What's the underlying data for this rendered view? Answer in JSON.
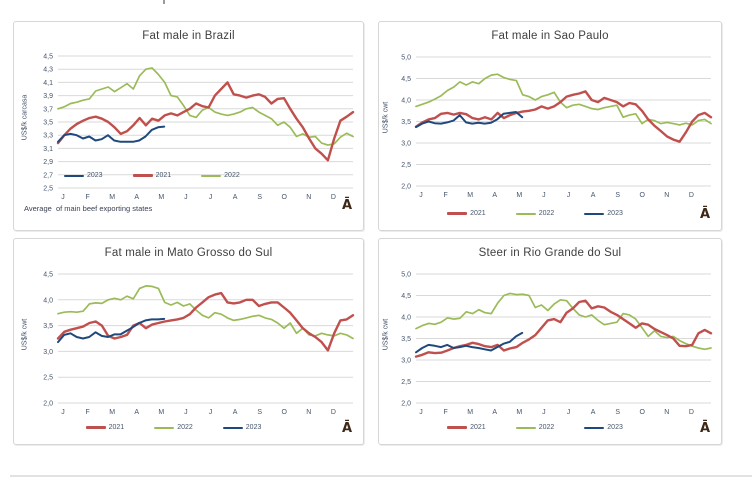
{
  "palette": {
    "red": "#C0504D",
    "green": "#9BBB59",
    "blue": "#1F497D",
    "grid": "#D9D9D9",
    "tick_text": "#44546A",
    "title_text": "#404040",
    "box_border": "#D6D6D6",
    "glyph_color": "#3D2817"
  },
  "chart_data": [
    {
      "type": "line",
      "title": "Fat male in Brazil",
      "ylabel": "US$/k carcasa",
      "xlabel": "",
      "ylim": [
        2.5,
        4.5
      ],
      "y_ticks": [
        "4,5",
        "4,3",
        "4,1",
        "3,9",
        "3,7",
        "3,5",
        "3,3",
        "3,1",
        "2,9",
        "2,7",
        "2,5"
      ],
      "x_labels": [
        "J",
        "F",
        "M",
        "A",
        "M",
        "J",
        "J",
        "A",
        "S",
        "O",
        "N",
        "D"
      ],
      "grid": true,
      "legend_position": "inside-bottom-left",
      "legend_order": [
        "2023",
        "2021",
        "2022"
      ],
      "footnote": "Average  of main beef exporting states",
      "corner_glyph": "Ā",
      "series": [
        {
          "name": "2021",
          "color_key": "red",
          "span": [
            0,
            1
          ],
          "values": [
            3.18,
            3.3,
            3.4,
            3.47,
            3.52,
            3.56,
            3.58,
            3.55,
            3.5,
            3.42,
            3.32,
            3.36,
            3.45,
            3.56,
            3.45,
            3.55,
            3.52,
            3.6,
            3.63,
            3.6,
            3.65,
            3.7,
            3.78,
            3.74,
            3.72,
            3.9,
            4.0,
            4.1,
            3.92,
            3.9,
            3.87,
            3.9,
            3.92,
            3.88,
            3.78,
            3.85,
            3.86,
            3.7,
            3.55,
            3.42,
            3.25,
            3.1,
            3.02,
            2.92,
            3.25,
            3.52,
            3.58,
            3.65
          ]
        },
        {
          "name": "2022",
          "color_key": "green",
          "span": [
            0,
            1
          ],
          "values": [
            3.7,
            3.73,
            3.78,
            3.8,
            3.83,
            3.85,
            3.97,
            4.0,
            4.03,
            3.96,
            4.02,
            4.08,
            4.0,
            4.2,
            4.3,
            4.32,
            4.22,
            4.1,
            3.9,
            3.88,
            3.75,
            3.6,
            3.57,
            3.68,
            3.72,
            3.65,
            3.62,
            3.6,
            3.62,
            3.65,
            3.7,
            3.72,
            3.65,
            3.6,
            3.55,
            3.45,
            3.5,
            3.42,
            3.28,
            3.32,
            3.27,
            3.28,
            3.18,
            3.15,
            3.17,
            3.27,
            3.33,
            3.28
          ]
        },
        {
          "name": "2023",
          "color_key": "blue",
          "span": [
            0,
            0.36
          ],
          "values": [
            3.2,
            3.3,
            3.32,
            3.3,
            3.25,
            3.28,
            3.22,
            3.24,
            3.3,
            3.22,
            3.2,
            3.2,
            3.2,
            3.22,
            3.28,
            3.38,
            3.42,
            3.43
          ]
        }
      ]
    },
    {
      "type": "line",
      "title": "Fat male in Sao Paulo",
      "ylabel": "US$/k cwt",
      "xlabel": "",
      "ylim": [
        2.0,
        5.0
      ],
      "y_ticks": [
        "5,0",
        "4,5",
        "4,0",
        "3,5",
        "3,0",
        "2,5",
        "2,0"
      ],
      "x_labels": [
        "J",
        "F",
        "M",
        "A",
        "M",
        "J",
        "J",
        "A",
        "S",
        "O",
        "N",
        "D"
      ],
      "grid": true,
      "legend_position": "bottom",
      "legend_order": [
        "2021",
        "2022",
        "2023"
      ],
      "corner_glyph": "Ā",
      "series": [
        {
          "name": "2021",
          "color_key": "red",
          "span": [
            0,
            1
          ],
          "values": [
            3.38,
            3.48,
            3.55,
            3.58,
            3.68,
            3.7,
            3.66,
            3.7,
            3.67,
            3.58,
            3.55,
            3.6,
            3.55,
            3.7,
            3.58,
            3.65,
            3.7,
            3.73,
            3.75,
            3.78,
            3.85,
            3.8,
            3.85,
            3.95,
            4.08,
            4.12,
            4.15,
            4.2,
            4.0,
            3.95,
            4.05,
            4.0,
            3.95,
            3.85,
            3.93,
            3.9,
            3.75,
            3.55,
            3.4,
            3.28,
            3.15,
            3.08,
            3.03,
            3.25,
            3.5,
            3.65,
            3.7,
            3.6
          ]
        },
        {
          "name": "2022",
          "color_key": "green",
          "span": [
            0,
            1
          ],
          "values": [
            3.85,
            3.9,
            3.95,
            4.02,
            4.1,
            4.22,
            4.3,
            4.42,
            4.35,
            4.42,
            4.38,
            4.5,
            4.58,
            4.6,
            4.52,
            4.48,
            4.45,
            4.12,
            4.08,
            4.0,
            4.08,
            4.12,
            4.18,
            3.95,
            3.82,
            3.88,
            3.9,
            3.85,
            3.8,
            3.78,
            3.82,
            3.85,
            3.88,
            3.6,
            3.65,
            3.68,
            3.45,
            3.55,
            3.52,
            3.45,
            3.48,
            3.45,
            3.42,
            3.46,
            3.42,
            3.52,
            3.55,
            3.45
          ]
        },
        {
          "name": "2023",
          "color_key": "blue",
          "span": [
            0,
            0.36
          ],
          "values": [
            3.37,
            3.45,
            3.5,
            3.46,
            3.45,
            3.48,
            3.52,
            3.65,
            3.48,
            3.45,
            3.47,
            3.45,
            3.47,
            3.55,
            3.68,
            3.7,
            3.72,
            3.6
          ]
        }
      ]
    },
    {
      "type": "line",
      "title": "Fat male in Mato Grosso do Sul",
      "ylabel": "US$/k cwt",
      "xlabel": "",
      "ylim": [
        2.0,
        4.5
      ],
      "y_ticks": [
        "4,5",
        "4,0",
        "3,5",
        "3,0",
        "2,5",
        "2,0"
      ],
      "x_labels": [
        "J",
        "F",
        "M",
        "A",
        "M",
        "J",
        "J",
        "A",
        "S",
        "O",
        "N",
        "D"
      ],
      "grid": true,
      "legend_position": "bottom",
      "legend_order": [
        "2021",
        "2022",
        "2023"
      ],
      "corner_glyph": "Ā",
      "series": [
        {
          "name": "2021",
          "color_key": "red",
          "span": [
            0,
            1
          ],
          "values": [
            3.25,
            3.38,
            3.42,
            3.45,
            3.48,
            3.55,
            3.58,
            3.5,
            3.3,
            3.25,
            3.28,
            3.32,
            3.5,
            3.55,
            3.45,
            3.52,
            3.55,
            3.58,
            3.6,
            3.62,
            3.65,
            3.72,
            3.85,
            3.95,
            4.05,
            4.1,
            4.13,
            3.95,
            3.93,
            3.95,
            4.0,
            4.0,
            3.88,
            3.92,
            3.95,
            3.95,
            3.85,
            3.75,
            3.6,
            3.45,
            3.35,
            3.28,
            3.18,
            3.02,
            3.35,
            3.6,
            3.62,
            3.7
          ]
        },
        {
          "name": "2022",
          "color_key": "green",
          "span": [
            0,
            1
          ],
          "values": [
            3.73,
            3.76,
            3.77,
            3.76,
            3.78,
            3.92,
            3.94,
            3.93,
            4.0,
            4.03,
            4.0,
            4.07,
            4.02,
            4.22,
            4.27,
            4.26,
            4.22,
            3.95,
            3.9,
            3.95,
            3.88,
            3.92,
            3.8,
            3.7,
            3.65,
            3.75,
            3.72,
            3.65,
            3.6,
            3.62,
            3.65,
            3.68,
            3.7,
            3.65,
            3.62,
            3.55,
            3.45,
            3.55,
            3.35,
            3.45,
            3.32,
            3.3,
            3.35,
            3.32,
            3.3,
            3.35,
            3.32,
            3.25
          ]
        },
        {
          "name": "2023",
          "color_key": "blue",
          "span": [
            0,
            0.36
          ],
          "values": [
            3.18,
            3.32,
            3.35,
            3.28,
            3.25,
            3.28,
            3.37,
            3.3,
            3.28,
            3.33,
            3.33,
            3.4,
            3.47,
            3.55,
            3.6,
            3.62,
            3.62,
            3.63
          ]
        }
      ]
    },
    {
      "type": "line",
      "title": "Steer  in Rio Grande do Sul",
      "ylabel": "US$/k cwt",
      "xlabel": "",
      "ylim": [
        2.0,
        5.0
      ],
      "y_ticks": [
        "5,0",
        "4,5",
        "4,0",
        "3,5",
        "3,0",
        "2,5",
        "2,0"
      ],
      "x_labels": [
        "J",
        "F",
        "M",
        "A",
        "M",
        "J",
        "J",
        "A",
        "S",
        "O",
        "N",
        "D"
      ],
      "grid": true,
      "legend_position": "bottom",
      "legend_order": [
        "2021",
        "2022",
        "2023"
      ],
      "corner_glyph": "Ā",
      "series": [
        {
          "name": "2021",
          "color_key": "red",
          "span": [
            0,
            1
          ],
          "values": [
            3.08,
            3.12,
            3.18,
            3.16,
            3.17,
            3.22,
            3.28,
            3.32,
            3.35,
            3.4,
            3.37,
            3.32,
            3.3,
            3.35,
            3.22,
            3.27,
            3.3,
            3.4,
            3.48,
            3.58,
            3.75,
            3.92,
            3.95,
            3.88,
            4.1,
            4.2,
            4.35,
            4.38,
            4.2,
            4.25,
            4.22,
            4.12,
            4.05,
            3.95,
            3.85,
            3.75,
            3.85,
            3.82,
            3.72,
            3.65,
            3.58,
            3.5,
            3.33,
            3.32,
            3.35,
            3.62,
            3.7,
            3.62
          ]
        },
        {
          "name": "2022",
          "color_key": "green",
          "span": [
            0,
            1
          ],
          "values": [
            3.73,
            3.8,
            3.85,
            3.83,
            3.88,
            3.98,
            3.95,
            3.97,
            4.12,
            4.08,
            4.17,
            4.1,
            4.08,
            4.32,
            4.5,
            4.55,
            4.52,
            4.53,
            4.5,
            4.22,
            4.28,
            4.15,
            4.3,
            4.4,
            4.38,
            4.2,
            4.05,
            4.0,
            4.05,
            3.92,
            3.82,
            3.85,
            3.88,
            4.08,
            4.05,
            3.95,
            3.75,
            3.55,
            3.68,
            3.55,
            3.52,
            3.55,
            3.45,
            3.38,
            3.32,
            3.28,
            3.25,
            3.28
          ]
        },
        {
          "name": "2023",
          "color_key": "blue",
          "span": [
            0,
            0.36
          ],
          "values": [
            3.18,
            3.28,
            3.35,
            3.33,
            3.3,
            3.35,
            3.28,
            3.3,
            3.33,
            3.3,
            3.28,
            3.25,
            3.22,
            3.3,
            3.38,
            3.42,
            3.55,
            3.63
          ]
        }
      ]
    }
  ]
}
